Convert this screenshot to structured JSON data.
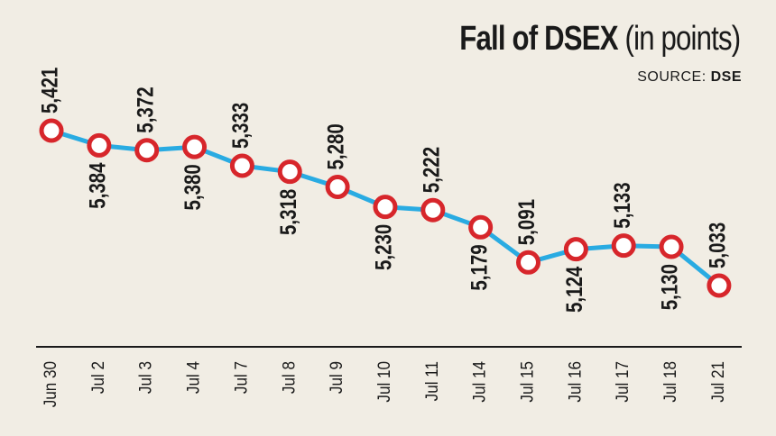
{
  "chart_data": {
    "type": "line",
    "title_main": "Fall of DSEX",
    "title_paren": "(in points)",
    "source_label": "SOURCE:",
    "source_value": "DSE",
    "categories": [
      "Jun 30",
      "Jul 2",
      "Jul 3",
      "Jul 4",
      "Jul 7",
      "Jul 8",
      "Jul 9",
      "Jul 10",
      "Jul 11",
      "Jul 14",
      "Jul 15",
      "Jul 16",
      "Jul 17",
      "Jul 18",
      "Jul 21"
    ],
    "values": [
      5421,
      5384,
      5372,
      5380,
      5333,
      5318,
      5280,
      5230,
      5222,
      5179,
      5091,
      5124,
      5133,
      5130,
      5033
    ],
    "value_labels": [
      "5,421",
      "5,384",
      "5,372",
      "5,380",
      "5,333",
      "5,318",
      "5,280",
      "5,230",
      "5,222",
      "5,179",
      "5,091",
      "5,124",
      "5,133",
      "5,130",
      "5,033"
    ],
    "label_side": [
      "above",
      "below",
      "above",
      "below",
      "above",
      "below",
      "above",
      "below",
      "above",
      "below",
      "above",
      "below",
      "above",
      "below",
      "above"
    ],
    "colors": {
      "line": "#29abe2",
      "marker_stroke": "#d7262b",
      "marker_fill": "#ffffff",
      "axis": "#1a1a1a"
    }
  }
}
